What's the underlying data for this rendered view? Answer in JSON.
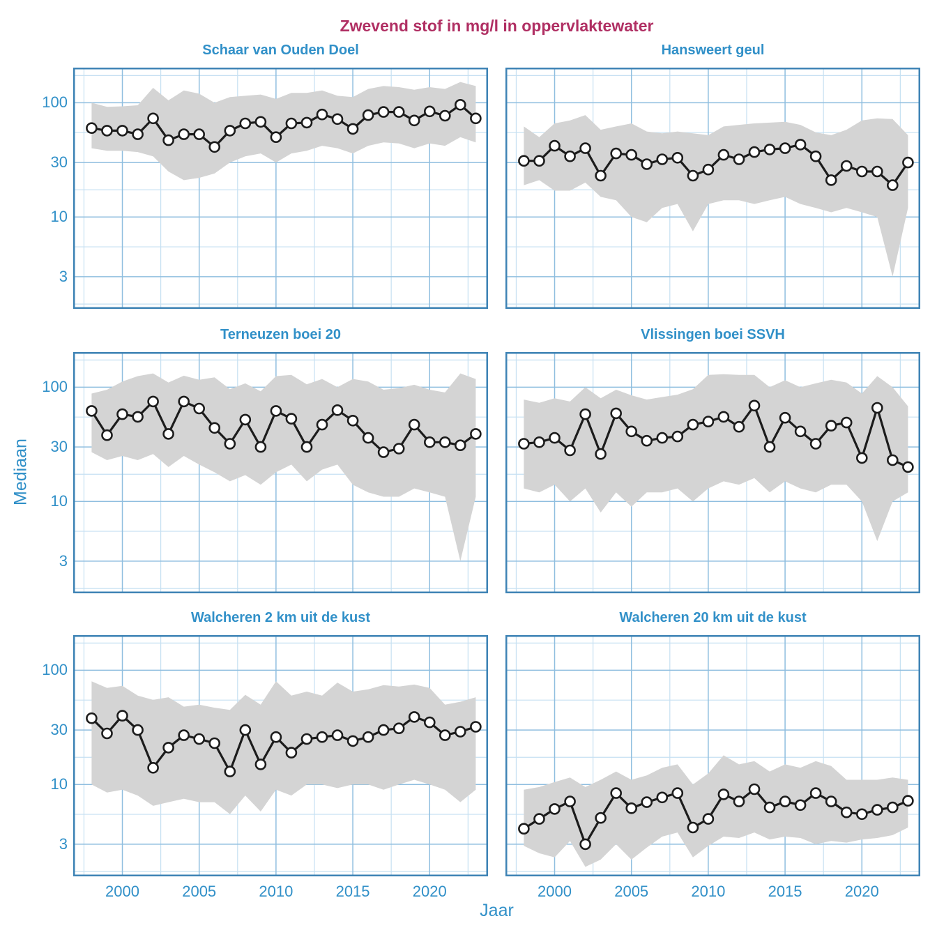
{
  "figure": {
    "title": "Zwevend stof in mg/l in oppervlaktewater",
    "ylabel": "Mediaan",
    "xlabel": "Jaar"
  },
  "colors": {
    "title": "#B02F63",
    "axis_text": "#3190C8",
    "grid_major": "#8FBEDF",
    "grid_minor": "#C6E0F2",
    "panel_border": "#3E83B5",
    "band_fill": "#D4D4D4",
    "line": "#1C1C1C",
    "marker_fill": "#FFFFFF"
  },
  "chart_data": {
    "type": "line",
    "title": "Zwevend stof in mg/l in oppervlaktewater",
    "xlabel": "Jaar",
    "ylabel": "Mediaan",
    "y_scale": "log10",
    "ylim": [
      1.57,
      203
    ],
    "xlim": [
      1996.8,
      2023.8
    ],
    "y_major_ticks": [
      100,
      30,
      10,
      3
    ],
    "y_minor_gridlines": [
      173,
      54.8,
      17.3,
      5.48,
      1.73
    ],
    "x_major_ticks": [
      2000,
      2005,
      2010,
      2015,
      2020
    ],
    "x_minor_gridlines": [
      1997.5,
      2002.5,
      2007.5,
      2012.5,
      2017.5,
      2022.5
    ],
    "grid": true,
    "legend": "none",
    "band_meaning": "shaded range around yearly median",
    "years": [
      1998,
      1999,
      2000,
      2001,
      2002,
      2003,
      2004,
      2005,
      2006,
      2007,
      2008,
      2009,
      2010,
      2011,
      2012,
      2013,
      2014,
      2015,
      2016,
      2017,
      2018,
      2019,
      2020,
      2021,
      2022,
      2023
    ],
    "panels": [
      {
        "title": "Schaar van Ouden Doel",
        "median": [
          60,
          57,
          57,
          53,
          73,
          47,
          53,
          53,
          41,
          57,
          66,
          68,
          50,
          66,
          67,
          79,
          72,
          59,
          78,
          83,
          83,
          70,
          84,
          77,
          96,
          73
        ],
        "lower": [
          40,
          38,
          38,
          37,
          34,
          25,
          21,
          22,
          24,
          30,
          34,
          36,
          30,
          36,
          38,
          42,
          40,
          36,
          42,
          45,
          44,
          40,
          44,
          42,
          50,
          45
        ],
        "upper": [
          100,
          92,
          93,
          95,
          135,
          105,
          128,
          120,
          100,
          112,
          115,
          118,
          108,
          122,
          122,
          128,
          115,
          112,
          132,
          140,
          137,
          130,
          137,
          132,
          152,
          140
        ]
      },
      {
        "title": "Hansweert geul",
        "median": [
          31,
          31,
          42,
          34,
          40,
          23,
          36,
          35,
          29,
          32,
          33,
          23,
          26,
          35,
          32,
          37,
          39,
          40,
          43,
          34,
          21,
          28,
          25,
          25,
          19,
          30
        ],
        "lower": [
          19,
          21,
          17,
          17,
          20,
          15,
          14,
          10,
          9,
          12,
          13,
          7.5,
          13,
          14,
          14,
          13,
          14,
          15,
          13,
          12,
          11,
          12,
          11,
          10,
          3,
          12
        ],
        "upper": [
          62,
          50,
          66,
          70,
          78,
          58,
          62,
          66,
          56,
          54,
          56,
          54,
          52,
          62,
          64,
          66,
          67,
          68,
          64,
          55,
          52,
          58,
          70,
          73,
          72,
          52
        ]
      },
      {
        "title": "Terneuzen boei 20",
        "median": [
          62,
          38,
          58,
          55,
          75,
          39,
          75,
          65,
          44,
          32,
          52,
          30,
          62,
          53,
          30,
          47,
          63,
          51,
          36,
          27,
          29,
          47,
          33,
          33,
          31,
          39
        ],
        "lower": [
          27,
          23,
          25,
          23,
          26,
          20,
          25,
          21,
          18,
          15,
          17,
          14,
          18,
          21,
          15,
          19,
          21,
          14,
          12,
          11,
          11,
          13,
          12,
          11,
          3,
          11
        ],
        "upper": [
          88,
          95,
          112,
          125,
          132,
          110,
          126,
          116,
          122,
          96,
          108,
          92,
          125,
          128,
          106,
          118,
          100,
          118,
          112,
          95,
          98,
          105,
          95,
          90,
          132,
          118
        ]
      },
      {
        "title": "Vlissingen boei SSVH",
        "median": [
          32,
          33,
          36,
          28,
          58,
          26,
          59,
          41,
          34,
          36,
          37,
          47,
          50,
          55,
          45,
          69,
          30,
          54,
          41,
          32,
          46,
          49,
          24,
          66,
          23,
          20
        ],
        "lower": [
          13,
          12,
          14,
          10,
          13,
          8,
          12,
          9,
          12,
          12,
          13,
          10,
          13,
          15,
          14,
          16,
          12,
          15,
          13,
          12,
          14,
          14,
          10,
          4.5,
          10,
          12
        ],
        "upper": [
          78,
          73,
          80,
          75,
          100,
          80,
          95,
          85,
          78,
          82,
          86,
          96,
          128,
          130,
          128,
          128,
          100,
          115,
          100,
          108,
          116,
          110,
          88,
          125,
          100,
          68
        ]
      },
      {
        "title": "Walcheren 2 km uit de kust",
        "median": [
          38,
          28,
          40,
          30,
          14,
          21,
          27,
          25,
          23,
          13,
          30,
          15,
          26,
          19,
          25,
          26,
          27,
          24,
          26,
          30,
          31,
          39,
          35,
          27,
          29,
          32
        ],
        "lower": [
          10,
          8.5,
          9,
          8,
          6.5,
          7,
          7.5,
          7,
          7,
          5.5,
          8,
          5.8,
          9,
          8,
          10,
          10,
          9.3,
          10,
          10,
          9,
          10,
          11,
          10,
          9,
          7,
          9
        ],
        "upper": [
          80,
          70,
          73,
          60,
          55,
          58,
          48,
          50,
          47,
          45,
          61,
          50,
          80,
          60,
          65,
          60,
          78,
          65,
          68,
          74,
          72,
          75,
          70,
          50,
          53,
          58
        ]
      },
      {
        "title": "Walcheren 20 km uit de kust",
        "median": [
          4.1,
          5.0,
          6.1,
          7.1,
          3.0,
          5.1,
          8.4,
          6.2,
          7.0,
          7.7,
          8.4,
          4.2,
          5.0,
          8.2,
          7.1,
          9.1,
          6.3,
          7.1,
          6.6,
          8.4,
          7.1,
          5.7,
          5.5,
          6.0,
          6.3,
          7.2
        ],
        "lower": [
          2.9,
          2.5,
          2.3,
          3.2,
          1.9,
          2.2,
          3.0,
          2.2,
          2.8,
          3.5,
          3.8,
          2.3,
          2.9,
          3.5,
          3.4,
          3.8,
          3.3,
          3.5,
          3.4,
          3.0,
          3.2,
          3.1,
          3.3,
          3.4,
          3.6,
          4.2
        ],
        "upper": [
          9,
          9.5,
          10.5,
          11.5,
          9.5,
          11,
          13,
          11,
          12,
          14,
          15,
          10,
          12.5,
          18,
          15,
          16,
          13,
          15,
          14,
          16,
          14.5,
          11,
          11,
          11,
          11.5,
          11
        ]
      }
    ]
  }
}
